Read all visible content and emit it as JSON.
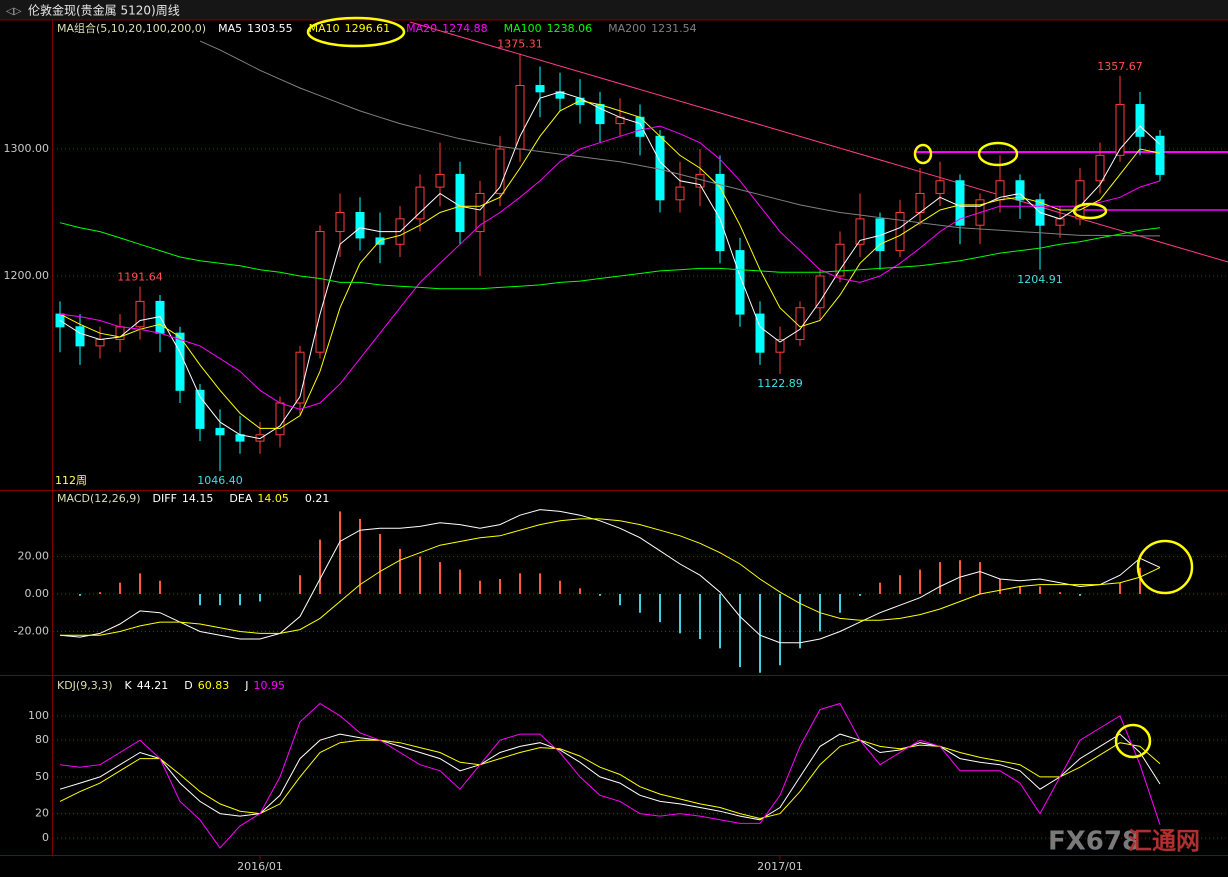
{
  "chart_data": [
    {
      "type": "candlestick",
      "title": "伦敦金现(贵金属 5120)周线",
      "indicator": "MA组合(5,10,20,100,200,0)",
      "period_label": "112周",
      "categories": [
        null,
        null,
        null,
        null,
        null,
        null,
        null,
        null,
        null,
        null,
        "2016/01",
        null,
        null,
        null,
        null,
        null,
        null,
        null,
        null,
        null,
        null,
        null,
        null,
        null,
        null,
        null,
        null,
        null,
        null,
        null,
        null,
        null,
        null,
        null,
        null,
        null,
        "2017/01",
        null,
        null,
        null,
        null,
        null,
        null,
        null,
        null,
        null,
        null,
        null,
        null,
        null,
        null,
        null,
        null,
        null,
        null,
        null
      ],
      "candles": {
        "open": [
          1170,
          1160,
          1145,
          1150,
          1160,
          1180,
          1155,
          1110,
          1080,
          1075,
          1070,
          1075,
          1100,
          1140,
          1235,
          1250,
          1230,
          1225,
          1245,
          1270,
          1280,
          1235,
          1265,
          1300,
          1350,
          1345,
          1340,
          1335,
          1320,
          1325,
          1310,
          1260,
          1270,
          1280,
          1220,
          1170,
          1140,
          1150,
          1175,
          1200,
          1225,
          1245,
          1220,
          1250,
          1265,
          1275,
          1240,
          1260,
          1275,
          1260,
          1240,
          1245,
          1275,
          1295,
          1335,
          1310
        ],
        "high": [
          1180,
          1170,
          1160,
          1170,
          1191.64,
          1185,
          1160,
          1115,
          1095,
          1090,
          1085,
          1105,
          1145,
          1240,
          1265,
          1262,
          1250,
          1255,
          1280,
          1305,
          1290,
          1275,
          1310,
          1375.31,
          1365,
          1360,
          1355,
          1345,
          1340,
          1335,
          1315,
          1290,
          1300,
          1295,
          1230,
          1180,
          1160,
          1180,
          1205,
          1235,
          1265,
          1250,
          1260,
          1285,
          1290,
          1280,
          1265,
          1295,
          1280,
          1265,
          1255,
          1285,
          1305,
          1357.67,
          1345,
          1315
        ],
        "low": [
          1140,
          1130,
          1135,
          1140,
          1150,
          1140,
          1100,
          1070,
          1046.4,
          1060,
          1060,
          1065,
          1090,
          1135,
          1215,
          1220,
          1210,
          1215,
          1235,
          1255,
          1225,
          1200,
          1255,
          1290,
          1325,
          1330,
          1320,
          1305,
          1310,
          1295,
          1250,
          1250,
          1255,
          1210,
          1160,
          1130,
          1122.89,
          1145,
          1165,
          1195,
          1215,
          1205,
          1215,
          1240,
          1255,
          1225,
          1225,
          1250,
          1245,
          1204.91,
          1230,
          1240,
          1265,
          1290,
          1295,
          1275
        ],
        "close": [
          1160,
          1145,
          1150,
          1160,
          1180,
          1155,
          1110,
          1080,
          1075,
          1070,
          1075,
          1100,
          1140,
          1235,
          1250,
          1230,
          1225,
          1245,
          1270,
          1280,
          1235,
          1265,
          1300,
          1350,
          1345,
          1340,
          1335,
          1320,
          1325,
          1310,
          1260,
          1270,
          1280,
          1220,
          1170,
          1140,
          1150,
          1175,
          1200,
          1225,
          1245,
          1220,
          1250,
          1265,
          1275,
          1240,
          1260,
          1275,
          1260,
          1240,
          1245,
          1275,
          1295,
          1335,
          1310,
          1280
        ],
        "up_color": "#ff3c3c",
        "down_color": "#00ffff"
      },
      "series": [
        {
          "name": "MA5",
          "color": "#ffffff",
          "values": [
            1165,
            1155,
            1150,
            1152,
            1165,
            1168,
            1140,
            1105,
            1085,
            1075,
            1072,
            1082,
            1105,
            1170,
            1225,
            1238,
            1235,
            1235,
            1250,
            1265,
            1255,
            1252,
            1270,
            1310,
            1340,
            1345,
            1340,
            1332,
            1325,
            1320,
            1290,
            1275,
            1272,
            1245,
            1200,
            1160,
            1148,
            1158,
            1180,
            1205,
            1228,
            1232,
            1238,
            1250,
            1262,
            1255,
            1255,
            1262,
            1265,
            1250,
            1245,
            1255,
            1272,
            1300,
            1318,
            1303.55
          ]
        },
        {
          "name": "MA10",
          "color": "#ffff00",
          "values": [
            1170,
            1162,
            1155,
            1152,
            1158,
            1162,
            1152,
            1130,
            1110,
            1092,
            1080,
            1080,
            1090,
            1125,
            1175,
            1210,
            1228,
            1232,
            1240,
            1250,
            1255,
            1255,
            1262,
            1285,
            1310,
            1330,
            1338,
            1335,
            1330,
            1325,
            1310,
            1295,
            1285,
            1270,
            1240,
            1205,
            1175,
            1160,
            1165,
            1185,
            1210,
            1225,
            1232,
            1242,
            1252,
            1256,
            1256,
            1260,
            1262,
            1258,
            1252,
            1252,
            1260,
            1280,
            1300,
            1296.61
          ]
        },
        {
          "name": "MA20",
          "color": "#ff00ff",
          "values": [
            1170,
            1168,
            1165,
            1160,
            1158,
            1155,
            1150,
            1145,
            1135,
            1125,
            1110,
            1100,
            1095,
            1100,
            1115,
            1135,
            1155,
            1175,
            1195,
            1210,
            1225,
            1240,
            1250,
            1262,
            1275,
            1290,
            1300,
            1305,
            1310,
            1315,
            1318,
            1312,
            1305,
            1292,
            1275,
            1255,
            1235,
            1220,
            1205,
            1198,
            1195,
            1200,
            1210,
            1222,
            1235,
            1245,
            1250,
            1255,
            1255,
            1255,
            1255,
            1255,
            1258,
            1262,
            1270,
            1274.88
          ]
        },
        {
          "name": "MA100",
          "color": "#00ff00",
          "values": [
            1242,
            1238,
            1235,
            1230,
            1225,
            1220,
            1215,
            1212,
            1210,
            1208,
            1205,
            1203,
            1200,
            1198,
            1195,
            1195,
            1193,
            1192,
            1191,
            1190,
            1190,
            1190,
            1191,
            1192,
            1193,
            1195,
            1196,
            1198,
            1200,
            1202,
            1204,
            1205,
            1206,
            1206,
            1205,
            1204,
            1203,
            1203,
            1203,
            1204,
            1205,
            1206,
            1207,
            1208,
            1210,
            1212,
            1215,
            1218,
            1220,
            1222,
            1225,
            1227,
            1230,
            1233,
            1236,
            1238.06
          ]
        },
        {
          "name": "MA200",
          "color": "#808080",
          "values": [
            null,
            null,
            null,
            null,
            null,
            null,
            null,
            1385,
            1378,
            1370,
            1362,
            1355,
            1348,
            1342,
            1336,
            1330,
            1325,
            1320,
            1316,
            1312,
            1308,
            1305,
            1302,
            1300,
            1298,
            1296,
            1294,
            1292,
            1290,
            1287,
            1284,
            1280,
            1276,
            1272,
            1268,
            1264,
            1260,
            1256,
            1253,
            1250,
            1248,
            1246,
            1244,
            1242,
            1240,
            1238,
            1237,
            1236,
            1235,
            1234,
            1233,
            1232,
            1232,
            1231.8,
            1231.6,
            1231.54
          ]
        }
      ],
      "annotations": [
        {
          "value": 1191.64,
          "label": "1191.64"
        },
        {
          "value": 1046.4,
          "label": "1046.40"
        },
        {
          "value": 1375.31,
          "label": "1375.31"
        },
        {
          "value": 1122.89,
          "label": "1122.89"
        },
        {
          "value": 1357.67,
          "label": "1357.67"
        },
        {
          "value": 1204.91,
          "label": "1204.91"
        }
      ],
      "ylim": [
        1031.5,
        1400
      ],
      "yticks": [
        {
          "value": 1300,
          "label": "1300.00"
        },
        {
          "value": 1200,
          "label": "1200.00"
        }
      ],
      "grid": true
    },
    {
      "type": "macd",
      "indicator": "MACD(12,26,9)",
      "series": [
        {
          "name": "DIFF",
          "color": "#ffffff",
          "values": [
            -22,
            -23,
            -21,
            -16,
            -9,
            -10,
            -15,
            -20,
            -22,
            -24,
            -24,
            -21,
            -12,
            8,
            28,
            34,
            35,
            35,
            36,
            38,
            37,
            35,
            37,
            42,
            45,
            44,
            42,
            39,
            35,
            30,
            23,
            16,
            10,
            1,
            -12,
            -22,
            -26,
            -26,
            -24,
            -20,
            -15,
            -10,
            -6,
            -2,
            4,
            9,
            12,
            8,
            7,
            8,
            6,
            4,
            5,
            10,
            19,
            14.15
          ]
        },
        {
          "name": "DEA",
          "color": "#ffff00",
          "values": [
            -22,
            -22,
            -22,
            -20,
            -17,
            -15,
            -15,
            -16,
            -18,
            -20,
            -21,
            -21,
            -19,
            -13,
            -4,
            5,
            12,
            18,
            22,
            26,
            28,
            30,
            31,
            34,
            37,
            39,
            40,
            40,
            39,
            37,
            34,
            31,
            27,
            22,
            16,
            8,
            1,
            -5,
            -10,
            -13,
            -14,
            -14,
            -13,
            -11,
            -8,
            -4,
            0,
            2,
            4,
            5,
            5,
            5,
            5,
            6,
            9,
            14.05
          ]
        }
      ],
      "histogram": {
        "up_color": "#ff5a3c",
        "down_color": "#40d0e0",
        "values": [
          0,
          -1,
          1,
          6,
          11,
          7,
          0,
          -6,
          -6,
          -6,
          -4,
          0,
          10,
          29,
          44,
          40,
          32,
          24,
          20,
          17,
          13,
          7,
          8,
          11,
          11,
          7,
          3,
          -1,
          -6,
          -10,
          -15,
          -21,
          -24,
          -29,
          -39,
          -42,
          -38,
          -29,
          -20,
          -10,
          -1,
          6,
          10,
          13,
          17,
          18,
          17,
          8,
          4,
          4,
          1,
          -1,
          0,
          6,
          14,
          0.21
        ]
      },
      "ylim": [
        -43.2,
        54.9
      ],
      "yticks": [
        {
          "value": 20,
          "label": "20.00"
        },
        {
          "value": 0,
          "label": "0.00"
        },
        {
          "value": -20,
          "label": "-20.00"
        }
      ],
      "grid": true
    },
    {
      "type": "kdj",
      "indicator": "KDJ(9,3,3)",
      "series": [
        {
          "name": "K",
          "color": "#ffffff",
          "values": [
            40,
            45,
            50,
            60,
            70,
            65,
            45,
            30,
            20,
            18,
            20,
            35,
            65,
            80,
            85,
            82,
            80,
            75,
            70,
            65,
            55,
            60,
            70,
            75,
            78,
            72,
            62,
            50,
            45,
            35,
            30,
            28,
            25,
            22,
            18,
            15,
            25,
            50,
            75,
            85,
            80,
            70,
            72,
            78,
            75,
            65,
            62,
            60,
            55,
            40,
            50,
            65,
            75,
            85,
            70,
            44.21
          ]
        },
        {
          "name": "D",
          "color": "#ffff00",
          "values": [
            30,
            38,
            45,
            55,
            65,
            65,
            52,
            38,
            28,
            22,
            20,
            28,
            50,
            70,
            78,
            80,
            80,
            78,
            74,
            70,
            62,
            60,
            65,
            70,
            74,
            73,
            67,
            58,
            52,
            42,
            36,
            32,
            28,
            25,
            20,
            16,
            20,
            38,
            60,
            75,
            80,
            75,
            73,
            76,
            75,
            70,
            66,
            63,
            60,
            50,
            50,
            58,
            68,
            78,
            75,
            60.83
          ]
        },
        {
          "name": "J",
          "color": "#ff00ff",
          "values": [
            60,
            58,
            60,
            70,
            80,
            65,
            30,
            15,
            -8,
            10,
            20,
            50,
            95,
            110,
            100,
            86,
            80,
            70,
            60,
            55,
            40,
            60,
            80,
            85,
            85,
            70,
            50,
            35,
            30,
            20,
            18,
            20,
            18,
            15,
            12,
            12,
            35,
            75,
            105,
            110,
            80,
            60,
            70,
            80,
            75,
            55,
            55,
            55,
            45,
            20,
            50,
            80,
            90,
            100,
            60,
            10.95
          ]
        }
      ],
      "ylim": [
        -13.8,
        132.5
      ],
      "yticks": [
        100,
        80,
        50,
        20,
        0
      ],
      "grid": true
    }
  ],
  "watermark": {
    "brand": "FX678",
    "name": "汇通网"
  }
}
